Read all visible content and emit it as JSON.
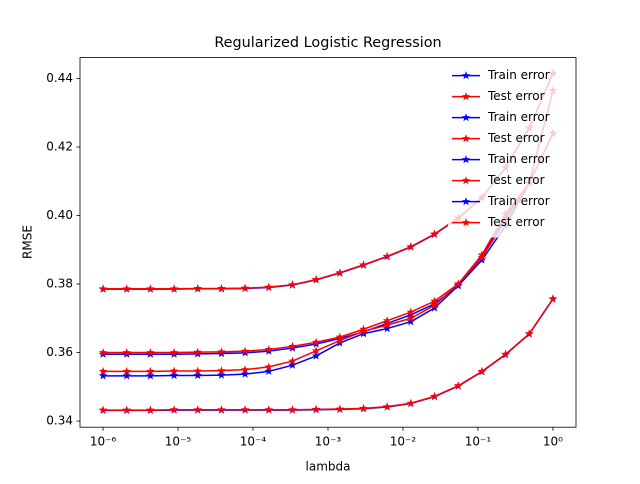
{
  "chart_data": {
    "type": "line",
    "title": "Regularized Logistic Regression",
    "x_label": "lambda",
    "y_label": "RMSE",
    "x": [
      1e-06,
      2.07e-06,
      4.28e-06,
      8.86e-06,
      1.833e-05,
      3.793e-05,
      7.848e-05,
      0.0001624,
      0.000336,
      0.0006952,
      0.001438,
      0.002976,
      0.006158,
      0.01274,
      0.02637,
      0.05456,
      0.1129,
      0.2336,
      0.4833,
      1
    ],
    "x_scale": "log",
    "xlim": [
      4.93e-07,
      2.03
    ],
    "xticks": [
      {
        "value": 1e-06,
        "label": "10⁻⁶"
      },
      {
        "value": 1e-05,
        "label": "10⁻⁵"
      },
      {
        "value": 0.0001,
        "label": "10⁻⁴"
      },
      {
        "value": 0.001,
        "label": "10⁻³"
      },
      {
        "value": 0.01,
        "label": "10⁻²"
      },
      {
        "value": 0.1,
        "label": "10⁻¹"
      },
      {
        "value": 1,
        "label": "10⁰"
      }
    ],
    "ylim": [
      0.3382,
      0.4461
    ],
    "yticks": [
      0.34,
      0.36,
      0.38,
      {
        "value": 0.4,
        "label": "0.40"
      },
      0.42,
      0.44
    ],
    "legend": "upper right",
    "series": [
      {
        "name": "Train error",
        "color": "#0000ff",
        "values": [
          0.3785,
          0.3785,
          0.3785,
          0.3785,
          0.3786,
          0.3786,
          0.3787,
          0.379,
          0.3797,
          0.3812,
          0.3832,
          0.3855,
          0.388,
          0.3908,
          0.3945,
          0.3992,
          0.4052,
          0.414,
          0.4255,
          0.4415
        ]
      },
      {
        "name": "Test error",
        "color": "#ff0000",
        "values": [
          0.3786,
          0.3786,
          0.3786,
          0.3786,
          0.3787,
          0.3787,
          0.3788,
          0.3791,
          0.3798,
          0.3813,
          0.3833,
          0.3856,
          0.3881,
          0.3909,
          0.3946,
          0.3993,
          0.4053,
          0.4141,
          0.4256,
          0.4416
        ]
      },
      {
        "name": "Train error",
        "color": "#0000ff",
        "values": [
          0.3595,
          0.3595,
          0.3595,
          0.3595,
          0.3596,
          0.3597,
          0.3599,
          0.3604,
          0.3613,
          0.3625,
          0.3641,
          0.366,
          0.3685,
          0.371,
          0.3742,
          0.3795,
          0.3878,
          0.3995,
          0.4095,
          0.4365
        ]
      },
      {
        "name": "Test error",
        "color": "#ff0000",
        "values": [
          0.36,
          0.36,
          0.36,
          0.36,
          0.3601,
          0.3602,
          0.3604,
          0.3609,
          0.3618,
          0.363,
          0.3645,
          0.3668,
          0.3693,
          0.3718,
          0.375,
          0.38,
          0.3885,
          0.4005,
          0.4095,
          0.4365
        ]
      },
      {
        "name": "Train error",
        "color": "#0000ff",
        "values": [
          0.3532,
          0.3532,
          0.3532,
          0.3533,
          0.3533,
          0.3534,
          0.3537,
          0.3545,
          0.3563,
          0.359,
          0.3628,
          0.3655,
          0.367,
          0.369,
          0.373,
          0.3795,
          0.387,
          0.397,
          0.4095,
          0.424
        ]
      },
      {
        "name": "Test error",
        "color": "#ff0000",
        "values": [
          0.3545,
          0.3545,
          0.3545,
          0.3546,
          0.3546,
          0.3547,
          0.355,
          0.3558,
          0.3575,
          0.3605,
          0.3635,
          0.3662,
          0.368,
          0.37,
          0.3738,
          0.38,
          0.3878,
          0.3985,
          0.4095,
          0.424
        ]
      },
      {
        "name": "Train error",
        "color": "#0000ff",
        "values": [
          0.3431,
          0.3431,
          0.3431,
          0.3432,
          0.3432,
          0.3432,
          0.3432,
          0.3432,
          0.3432,
          0.3433,
          0.3434,
          0.3436,
          0.3441,
          0.3451,
          0.3471,
          0.3502,
          0.3544,
          0.3594,
          0.3654,
          0.3756
        ]
      },
      {
        "name": "Test error",
        "color": "#ff0000",
        "values": [
          0.3432,
          0.3432,
          0.3432,
          0.3433,
          0.3433,
          0.3433,
          0.3433,
          0.3433,
          0.3433,
          0.3434,
          0.3435,
          0.3437,
          0.3442,
          0.3452,
          0.3472,
          0.3503,
          0.3545,
          0.3595,
          0.3655,
          0.3757
        ]
      }
    ]
  }
}
